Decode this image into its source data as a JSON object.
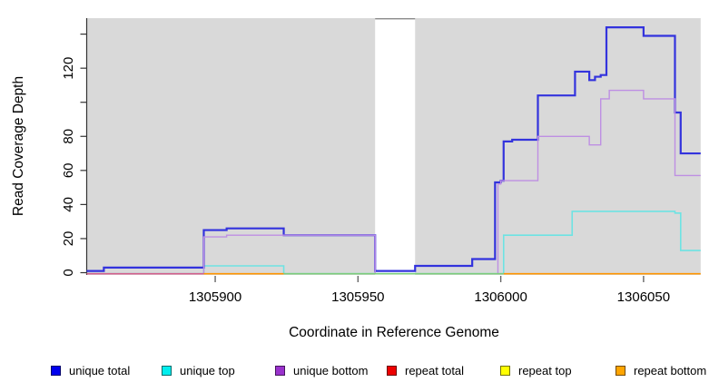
{
  "chart_data": {
    "type": "line",
    "subtype": "step-coverage",
    "title": "",
    "xlabel": "Coordinate in Reference Genome",
    "ylabel": "Read Coverage Depth",
    "xlim": [
      1305855,
      1306070
    ],
    "ylim": [
      0,
      149
    ],
    "x_ticks": [
      1305900,
      1305950,
      1306000,
      1306050
    ],
    "y_ticks": [
      0,
      20,
      40,
      60,
      80,
      100,
      120,
      140
    ],
    "y_tick_labels": [
      "0",
      "20",
      "40",
      "60",
      "80",
      "",
      "120",
      ""
    ],
    "grid": false,
    "plot_bg": "#d9d9d9",
    "no_data_region": {
      "from": 1305956,
      "to": 1305970,
      "color": "#ffffff",
      "top_edge_color": "#8a8a8a"
    },
    "series": [
      {
        "name": "unique total",
        "color": "#3333dd",
        "width": 2.2,
        "steps": [
          [
            1305855,
            1
          ],
          [
            1305861,
            3
          ],
          [
            1305896,
            25
          ],
          [
            1305904,
            26
          ],
          [
            1305924,
            22
          ],
          [
            1305956,
            1
          ],
          [
            1305970,
            4
          ],
          [
            1305990,
            8
          ],
          [
            1305998,
            53
          ],
          [
            1306000,
            54
          ],
          [
            1306001,
            77
          ],
          [
            1306004,
            78
          ],
          [
            1306013,
            104
          ],
          [
            1306026,
            118
          ],
          [
            1306031,
            113
          ],
          [
            1306033,
            115
          ],
          [
            1306035,
            116
          ],
          [
            1306037,
            144
          ],
          [
            1306050,
            139
          ],
          [
            1306061,
            94
          ],
          [
            1306063,
            70
          ],
          [
            1306070,
            70
          ]
        ]
      },
      {
        "name": "unique top",
        "color": "#6de3e3",
        "width": 1.6,
        "steps": [
          [
            1305855,
            0
          ],
          [
            1305896,
            4
          ],
          [
            1305924,
            0
          ],
          [
            1306001,
            22
          ],
          [
            1306025,
            36
          ],
          [
            1306061,
            35
          ],
          [
            1306063,
            13
          ],
          [
            1306070,
            13
          ]
        ]
      },
      {
        "name": "unique bottom",
        "color": "#be8fe3",
        "width": 1.4,
        "steps": [
          [
            1305855,
            0
          ],
          [
            1305896,
            21
          ],
          [
            1305904,
            22
          ],
          [
            1305956,
            0
          ],
          [
            1305999,
            52
          ],
          [
            1306000,
            54
          ],
          [
            1306013,
            80
          ],
          [
            1306031,
            75
          ],
          [
            1306035,
            102
          ],
          [
            1306038,
            107
          ],
          [
            1306050,
            102
          ],
          [
            1306061,
            57
          ],
          [
            1306070,
            57
          ]
        ]
      },
      {
        "name": "repeat total",
        "color": "#ee0000",
        "width": 1.2,
        "steps": [
          [
            1305855,
            0
          ],
          [
            1306070,
            0
          ]
        ]
      },
      {
        "name": "repeat top",
        "color": "#ffff00",
        "width": 1.2,
        "steps": [
          [
            1305855,
            0
          ],
          [
            1306070,
            0
          ]
        ]
      },
      {
        "name": "repeat bottom",
        "color": "#ff9500",
        "width": 1.6,
        "steps": [
          [
            1305855,
            0
          ],
          [
            1306070,
            0
          ]
        ]
      }
    ],
    "zero_line_overlap_segments": [
      {
        "from": 1305855,
        "to": 1305896,
        "color": "#d2608c"
      },
      {
        "from": 1305896,
        "to": 1305924,
        "color": "#ff9500"
      },
      {
        "from": 1305924,
        "to": 1306001,
        "color": "#7ccd7c"
      },
      {
        "from": 1306001,
        "to": 1306070,
        "color": "#ff9500"
      }
    ],
    "legend": [
      {
        "label": "unique total",
        "color": "#0000ee"
      },
      {
        "label": "unique top",
        "color": "#00eeee"
      },
      {
        "label": "unique bottom",
        "color": "#9a32cd"
      },
      {
        "label": "repeat total",
        "color": "#ee0000"
      },
      {
        "label": "repeat top",
        "color": "#ffff00"
      },
      {
        "label": "repeat bottom",
        "color": "#ffa500"
      }
    ],
    "legend_position": "bottom"
  }
}
